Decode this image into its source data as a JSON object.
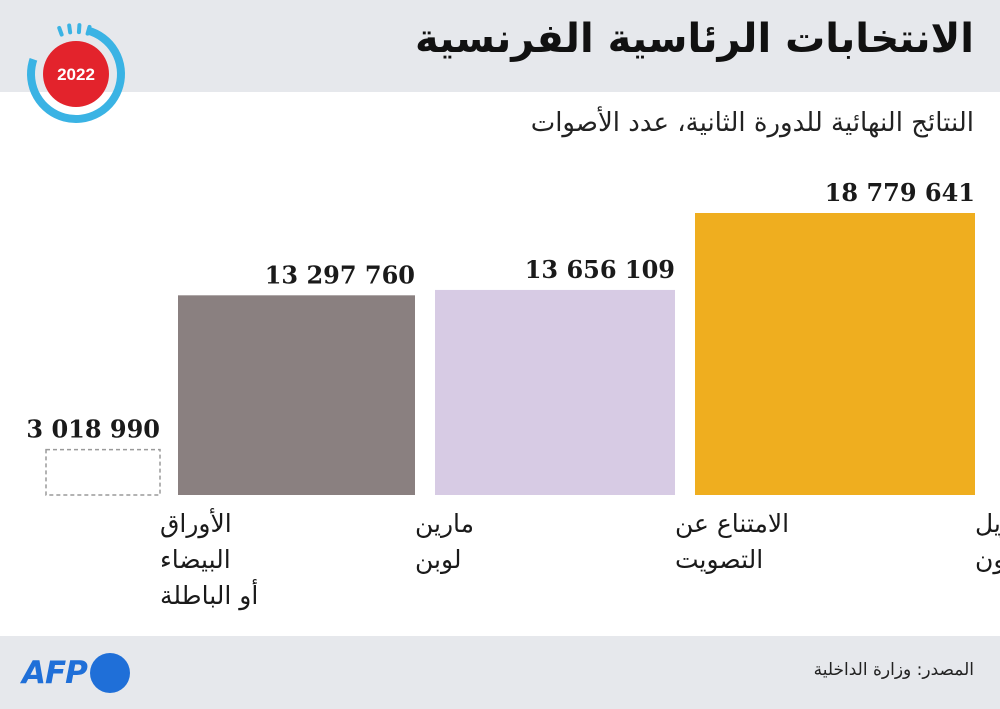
{
  "header": {
    "title": "الانتخابات الرئاسية الفرنسية",
    "badge_year": "2022",
    "subtitle": "النتائج النهائية للدورة الثانية، عدد الأصوات"
  },
  "footer": {
    "source": "المصدر: وزارة الداخلية",
    "logo_text": "AFP"
  },
  "chart_data": {
    "type": "bar",
    "title": "النتائج النهائية للدورة الثانية، عدد الأصوات",
    "xlabel": "",
    "ylabel": "",
    "ylim": [
      0,
      18779641
    ],
    "grid": false,
    "categories": [
      [
        "إيمانويل",
        "ماكرون"
      ],
      [
        "الامتناع عن",
        "التصويت"
      ],
      [
        "مارين",
        "لوبن"
      ],
      [
        "الأوراق",
        "البيضاء",
        "أو الباطلة"
      ]
    ],
    "values": [
      18779641,
      13656109,
      13297760,
      3018990
    ],
    "value_labels": [
      "18 779 641",
      "13 656 109",
      "13 297 760",
      "3 018 990"
    ],
    "colors": [
      "#efae1f",
      "#d7cbe4",
      "#8a8080",
      "#ffffff"
    ]
  },
  "colors": {
    "header_bg": "#e6e8ec",
    "badge_red": "#e3232c",
    "badge_blue": "#3ab3e4",
    "afp_blue": "#1f6fd8"
  }
}
